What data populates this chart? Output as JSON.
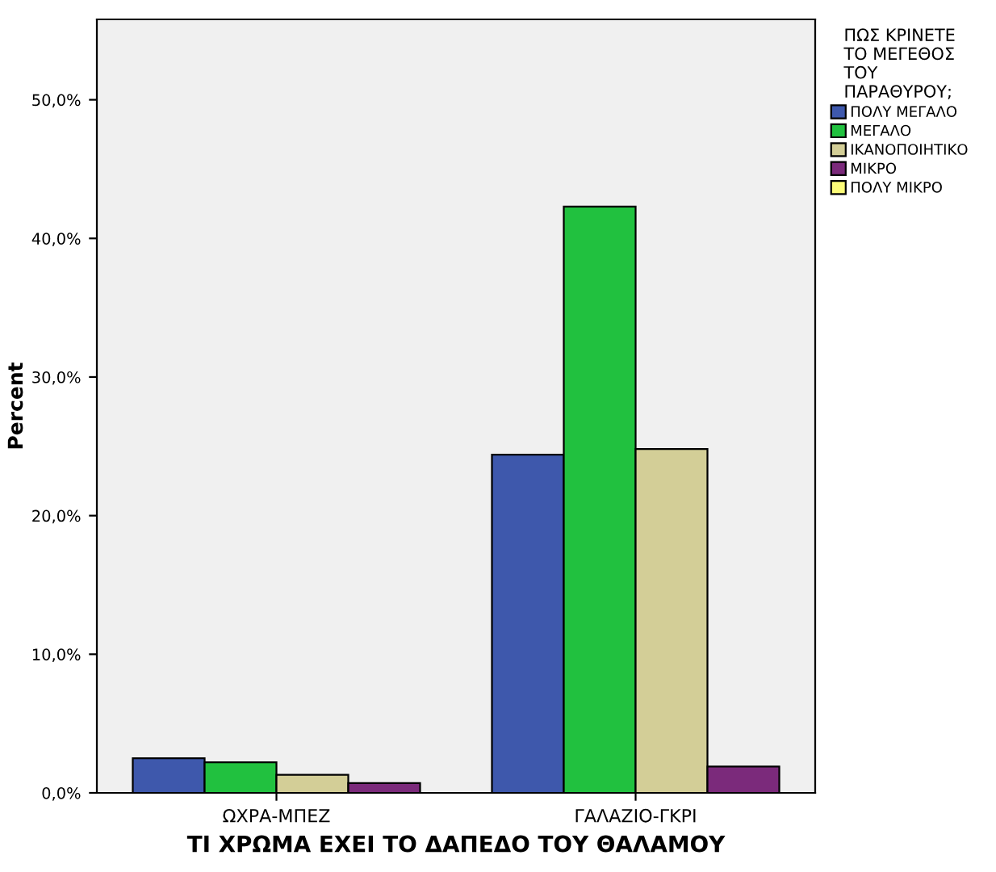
{
  "chart_data": {
    "type": "bar",
    "xlabel": "ΤΙ ΧΡΩΜΑ ΕΧΕΙ ΤΟ ΔΑΠΕΔΟ ΤΟΥ ΘΑΛΑΜΟΥ",
    "ylabel": "Percent",
    "legend_title": "ΠΩΣ ΚΡΙΝΕΤΕ\nΤΟ ΜΕΓΕΘΟΣ\nΤΟΥ\nΠΑΡΑΘΥΡΟΥ;",
    "legend": "right",
    "grid": false,
    "categories": [
      "ΩΧΡΑ-ΜΠΕΖ",
      "ΓΑΛΑΖΙΟ-ΓΚΡΙ"
    ],
    "series": [
      {
        "name": "ΠΟΛΥ ΜΕΓΑΛΟ",
        "color": "#3e58ac",
        "values": [
          2.5,
          24.4
        ]
      },
      {
        "name": "ΜΕΓΑΛΟ",
        "color": "#21c13f",
        "values": [
          2.2,
          42.3
        ]
      },
      {
        "name": "ΙΚΑΝΟΠΟΙΗΤΙΚΟ",
        "color": "#d3ce97",
        "values": [
          1.3,
          24.8
        ]
      },
      {
        "name": "ΜΙΚΡΟ",
        "color": "#7b2a7b",
        "values": [
          0.7,
          1.9
        ]
      },
      {
        "name": "ΠΟΛΥ ΜΙΚΡΟ",
        "color": "#fcfc78",
        "values": [
          null,
          null
        ]
      }
    ],
    "ylim": [
      0,
      55.8
    ],
    "yticks": [
      {
        "value": 0,
        "label": "0,0%"
      },
      {
        "value": 10,
        "label": "10,0%"
      },
      {
        "value": 20,
        "label": "20,0%"
      },
      {
        "value": 30,
        "label": "30,0%"
      },
      {
        "value": 40,
        "label": "40,0%"
      },
      {
        "value": 50,
        "label": "50,0%"
      }
    ]
  }
}
